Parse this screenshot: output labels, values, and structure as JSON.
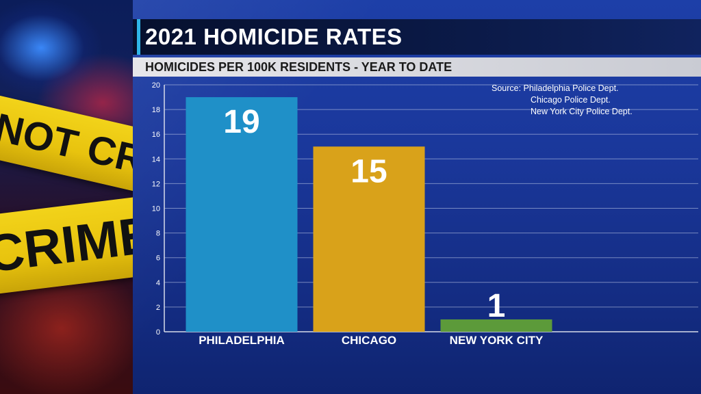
{
  "photo": {
    "tape_top_text": "NOT CROSS",
    "tape_bottom_text": "CRIME S"
  },
  "header": {
    "title": "2021 HOMICIDE RATES",
    "subtitle": "HOMICIDES PER 100K RESIDENTS - YEAR TO DATE"
  },
  "source": {
    "line1": "Source: Philadelphia Police Dept.",
    "line2": "Chicago Police Dept.",
    "line3": "New York City Police Dept."
  },
  "chart_data": {
    "type": "bar",
    "title": "2021 HOMICIDE RATES",
    "subtitle": "HOMICIDES PER 100K RESIDENTS - YEAR TO DATE",
    "categories": [
      "PHILADELPHIA",
      "CHICAGO",
      "NEW YORK CITY"
    ],
    "values": [
      19,
      15,
      1
    ],
    "value_labels": [
      "19",
      "15",
      "1"
    ],
    "colors": [
      "#1f90c8",
      "#d9a21a",
      "#5c9a3a"
    ],
    "ylim": [
      0,
      20
    ],
    "yticks": [
      "0",
      "2",
      "4",
      "6",
      "8",
      "10",
      "12",
      "14",
      "16",
      "18",
      "20"
    ],
    "grid": true,
    "xlabel": "",
    "ylabel": ""
  }
}
